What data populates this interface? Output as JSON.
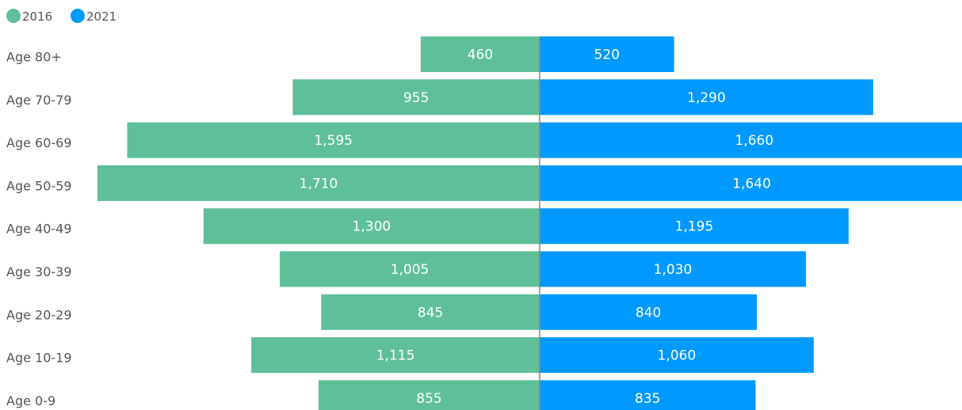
{
  "chart_data": {
    "type": "bar",
    "orientation": "horizontal",
    "layout": "population-pyramid",
    "categories": [
      "Age 80+",
      "Age 70-79",
      "Age 60-69",
      "Age 50-59",
      "Age 40-49",
      "Age 30-39",
      "Age 20-29",
      "Age 10-19",
      "Age 0-9"
    ],
    "series": [
      {
        "name": "2016",
        "color": "#5fbf99",
        "side": "left",
        "values": [
          460,
          955,
          1595,
          1710,
          1300,
          1005,
          845,
          1115,
          855
        ],
        "labels": [
          "460",
          "955",
          "1,595",
          "1,710",
          "1,300",
          "1,005",
          "845",
          "1,115",
          "855"
        ]
      },
      {
        "name": "2021",
        "color": "#0099ff",
        "side": "right",
        "values": [
          520,
          1290,
          1660,
          1640,
          1195,
          1030,
          840,
          1060,
          835
        ],
        "labels": [
          "520",
          "1,290",
          "1,660",
          "1,640",
          "1,195",
          "1,030",
          "840",
          "1,060",
          "835"
        ]
      }
    ],
    "legend_position": "top-left",
    "center_line_color": "#888888",
    "grid": false
  }
}
